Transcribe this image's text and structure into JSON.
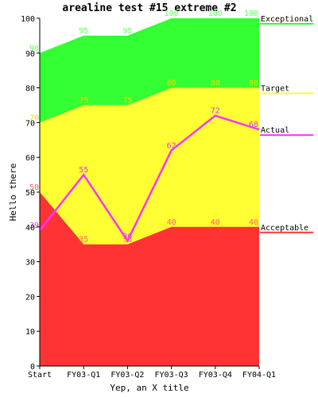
{
  "chart_data": {
    "type": "area",
    "title": "arealine test #15 extreme #2",
    "xlabel": "Yep, an X title",
    "ylabel": "Hello there",
    "ylim": [
      0,
      100
    ],
    "yticks": [
      0,
      10,
      20,
      30,
      40,
      50,
      60,
      70,
      80,
      90,
      100
    ],
    "grid": false,
    "legend_placement": "right",
    "categories": [
      "Start",
      "FY03-Q1",
      "FY03-Q2",
      "FY03-Q3",
      "FY03-Q4",
      "FY04-Q1"
    ],
    "series": [
      {
        "name": "Exceptional",
        "kind": "area",
        "color": "#33ff33",
        "label_color": "#66ff66",
        "values": [
          90,
          95,
          95,
          100,
          100,
          100
        ]
      },
      {
        "name": "Target",
        "kind": "area",
        "color": "#ffff33",
        "label_color": "#e0e000",
        "values": [
          70,
          75,
          75,
          80,
          80,
          80
        ]
      },
      {
        "name": "Acceptable",
        "kind": "area",
        "color": "#ff3333",
        "label_color": "#ff6666",
        "values": [
          50,
          35,
          35,
          40,
          40,
          40
        ]
      },
      {
        "name": "Actual",
        "kind": "line",
        "color": "#ff33ff",
        "label_color": "#e040e0",
        "values": [
          39,
          55,
          36,
          62,
          72,
          68
        ]
      }
    ]
  }
}
